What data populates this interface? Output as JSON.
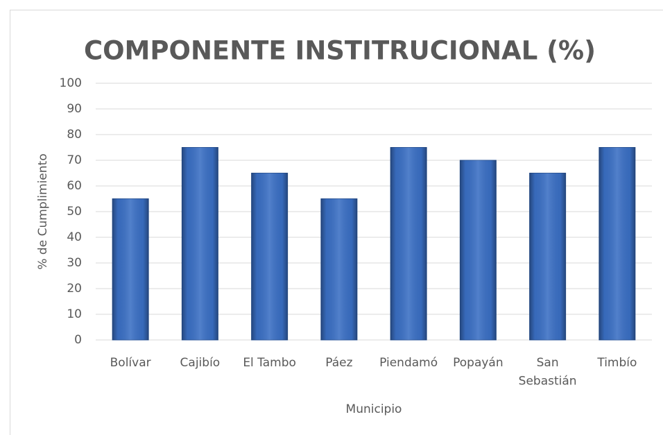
{
  "chart_data": {
    "type": "bar",
    "title": "COMPONENTE INSTITRUCIONAL (%)",
    "x_label": "Municipio",
    "y_label": "% de Cumplimiento",
    "categories": [
      "Bolívar",
      "Cajibío",
      "El Tambo",
      "Páez",
      "Piendamó",
      "Popayán",
      "San Sebastián",
      "Timbío"
    ],
    "values": [
      55,
      75,
      65,
      55,
      75,
      70,
      65,
      75
    ],
    "color": "#3a6fc4",
    "ylim": [
      0,
      100
    ],
    "yticks": [
      0,
      10,
      20,
      30,
      40,
      50,
      60,
      70,
      80,
      90,
      100
    ],
    "grid": true
  }
}
